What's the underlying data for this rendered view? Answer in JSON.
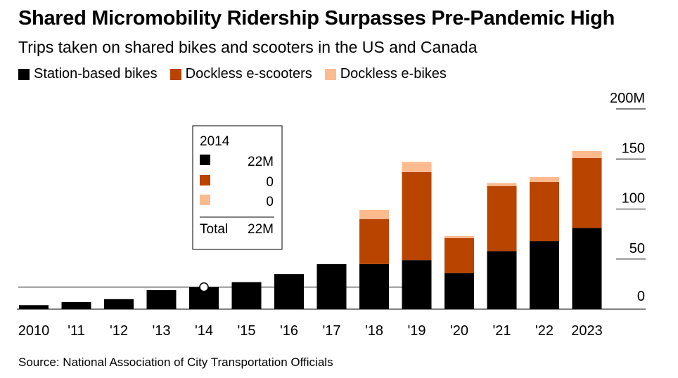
{
  "header": {
    "title": "Shared Micromobility Ridership Surpasses Pre-Pandemic High",
    "subtitle": "Trips taken on shared bikes and scooters in the US and Canada"
  },
  "footer": {
    "source": "Source: National Association of City Transportation Officials"
  },
  "colors": {
    "station": "#000000",
    "escooter": "#b84400",
    "ebike": "#fcbb8f"
  },
  "chart_data": {
    "type": "bar",
    "stacked": true,
    "categories": [
      "2010",
      "'11",
      "'12",
      "'13",
      "'14",
      "'15",
      "'16",
      "'17",
      "'18",
      "'19",
      "'20",
      "'21",
      "'22",
      "2023"
    ],
    "series": [
      {
        "name": "Station-based bikes",
        "values": [
          4,
          7,
          10,
          19,
          22,
          27,
          35,
          45,
          45,
          49,
          36,
          58,
          68,
          81
        ]
      },
      {
        "name": "Dockless e-scooters",
        "values": [
          0,
          0,
          0,
          0,
          0,
          0,
          0,
          0,
          45,
          88,
          35,
          65,
          59,
          70
        ]
      },
      {
        "name": "Dockless e-bikes",
        "values": [
          0,
          0,
          0,
          0,
          0,
          0,
          0,
          0,
          9,
          10,
          2,
          3,
          5,
          7
        ]
      }
    ],
    "y_ticks": [
      "200M",
      "150",
      "100",
      "50",
      "0"
    ],
    "y_tick_values": [
      200,
      150,
      100,
      50,
      0
    ],
    "ylim": [
      0,
      200
    ],
    "reference_value": 22,
    "highlight_index": 4,
    "tooltip": {
      "year": "2014",
      "rows": [
        "22M",
        "0",
        "0"
      ],
      "total_label": "Total",
      "total_value": "22M"
    }
  }
}
